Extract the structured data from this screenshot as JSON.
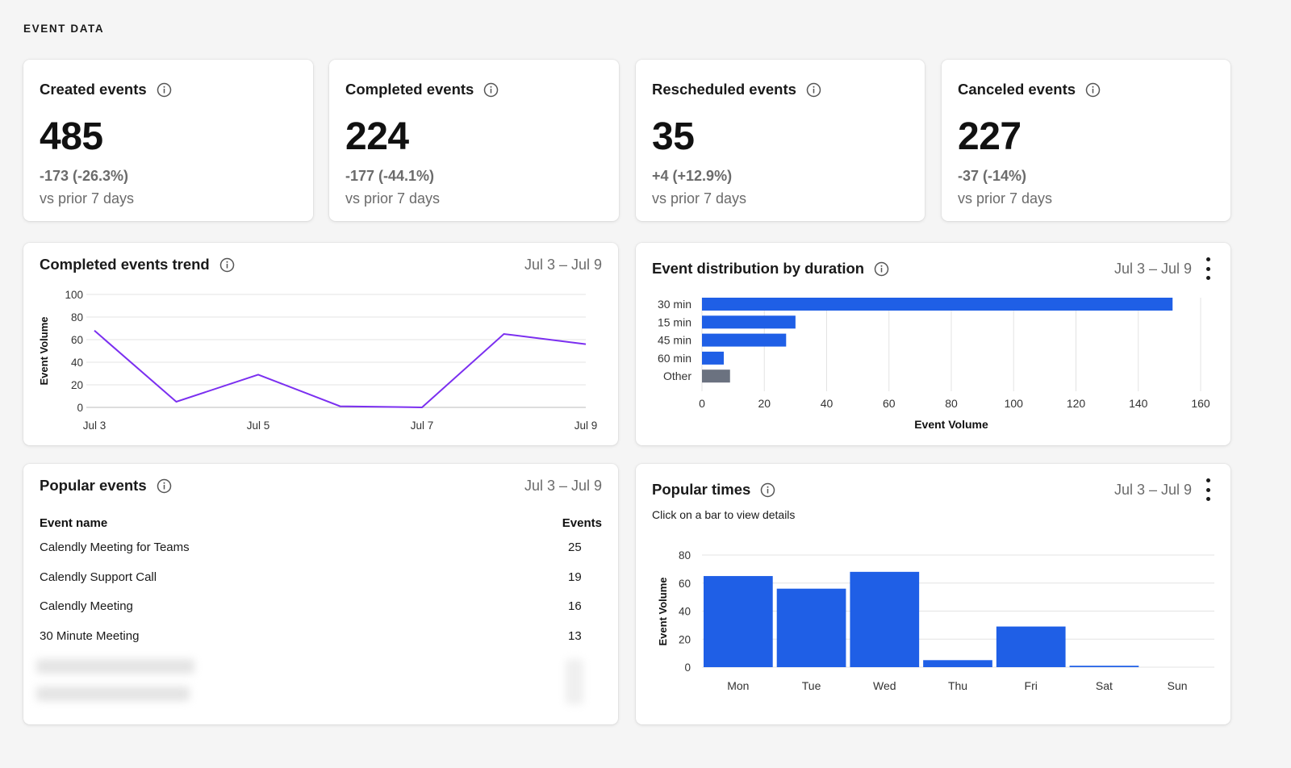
{
  "section_title": "EVENT DATA",
  "stats": [
    {
      "title": "Created events",
      "value": "485",
      "delta": "-173 (-26.3%)",
      "compare": "vs prior 7 days"
    },
    {
      "title": "Completed events",
      "value": "224",
      "delta": "-177 (-44.1%)",
      "compare": "vs prior 7 days"
    },
    {
      "title": "Rescheduled events",
      "value": "35",
      "delta": "+4 (+12.9%)",
      "compare": "vs prior 7 days"
    },
    {
      "title": "Canceled events",
      "value": "227",
      "delta": "-37 (-14%)",
      "compare": "vs prior 7 days"
    }
  ],
  "trend": {
    "title": "Completed events trend",
    "date_range": "Jul 3 – Jul 9"
  },
  "duration": {
    "title": "Event distribution by duration",
    "date_range": "Jul 3 – Jul 9"
  },
  "popular_events": {
    "title": "Popular events",
    "date_range": "Jul 3 – Jul 9",
    "col_name": "Event name",
    "col_events": "Events",
    "rows": [
      {
        "name": "Calendly Meeting for Teams",
        "count": "25"
      },
      {
        "name": "Calendly Support Call",
        "count": "19"
      },
      {
        "name": "Calendly Meeting",
        "count": "16"
      },
      {
        "name": "30 Minute Meeting",
        "count": "13"
      }
    ]
  },
  "popular_times": {
    "title": "Popular times",
    "date_range": "Jul 3 – Jul 9",
    "note": "Click on a bar to view details"
  },
  "colors": {
    "primary": "#1f5fe6",
    "line": "#7b2ff0",
    "other": "#6b7280",
    "muted": "#6b6b6b"
  },
  "chart_data": [
    {
      "type": "line",
      "ylabel": "Event Volume",
      "x": [
        "Jul 3",
        "Jul 4",
        "Jul 5",
        "Jul 6",
        "Jul 7",
        "Jul 8",
        "Jul 9"
      ],
      "x_tick_labels": [
        "Jul 3",
        "Jul 5",
        "Jul 7",
        "Jul 9"
      ],
      "values": [
        68,
        5,
        29,
        1,
        0,
        65,
        56
      ],
      "ylim": [
        0,
        100
      ],
      "yticks": [
        0,
        20,
        40,
        60,
        80,
        100
      ],
      "grid": true
    },
    {
      "type": "bar",
      "orientation": "horizontal",
      "xlabel": "Event Volume",
      "categories": [
        "30 min",
        "15 min",
        "45 min",
        "60 min",
        "Other"
      ],
      "values": [
        151,
        30,
        27,
        7,
        9
      ],
      "xlim": [
        0,
        160
      ],
      "xticks": [
        0,
        20,
        40,
        60,
        80,
        100,
        120,
        140,
        160
      ],
      "grid": true
    },
    {
      "type": "bar",
      "ylabel": "Event Volume",
      "categories": [
        "Mon",
        "Tue",
        "Wed",
        "Thu",
        "Fri",
        "Sat",
        "Sun"
      ],
      "values": [
        65,
        56,
        68,
        5,
        29,
        1,
        0
      ],
      "ylim": [
        0,
        80
      ],
      "yticks": [
        0,
        20,
        40,
        60,
        80
      ],
      "grid": true
    }
  ]
}
